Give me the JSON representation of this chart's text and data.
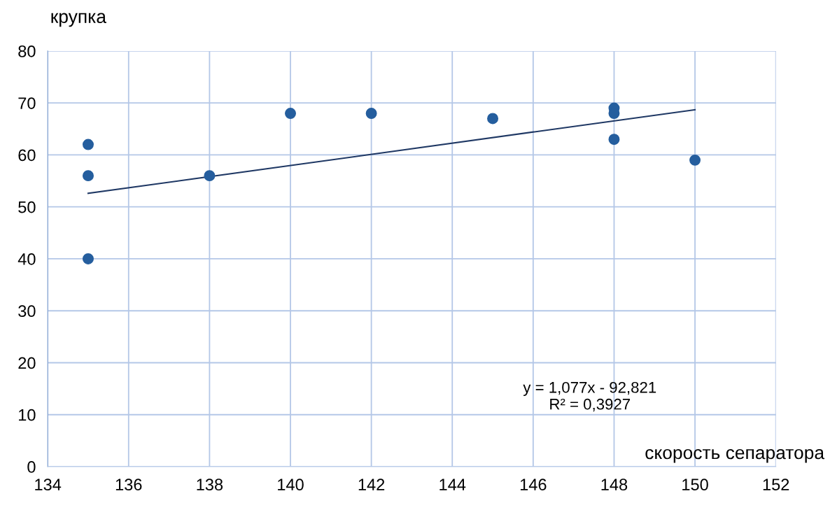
{
  "chart_data": {
    "type": "scatter",
    "ylabel": "крупка",
    "xlabel": "скорость сепаратора",
    "xlim": [
      134,
      152
    ],
    "xticks": [
      134,
      136,
      138,
      140,
      142,
      144,
      146,
      148,
      150,
      152
    ],
    "ylim": [
      0,
      80
    ],
    "yticks": [
      0,
      10,
      20,
      30,
      40,
      50,
      60,
      70,
      80
    ],
    "grid": true,
    "marker": "circle",
    "series": [
      {
        "color": "#255e9e",
        "x": [
          135,
          135,
          135,
          138,
          140,
          142,
          145,
          148,
          148,
          148,
          150
        ],
        "values": [
          62,
          56,
          40,
          56,
          68,
          68,
          67,
          69,
          68,
          63,
          59
        ]
      },
      {
        "type": "line",
        "color": "#1f3864",
        "x": [
          135,
          150
        ],
        "values": [
          52.6,
          68.7
        ],
        "line_style": "solid",
        "marker": "none"
      }
    ],
    "annotations": [
      "y = 1,077x - 92,821\nR² = 0,3927"
    ]
  }
}
